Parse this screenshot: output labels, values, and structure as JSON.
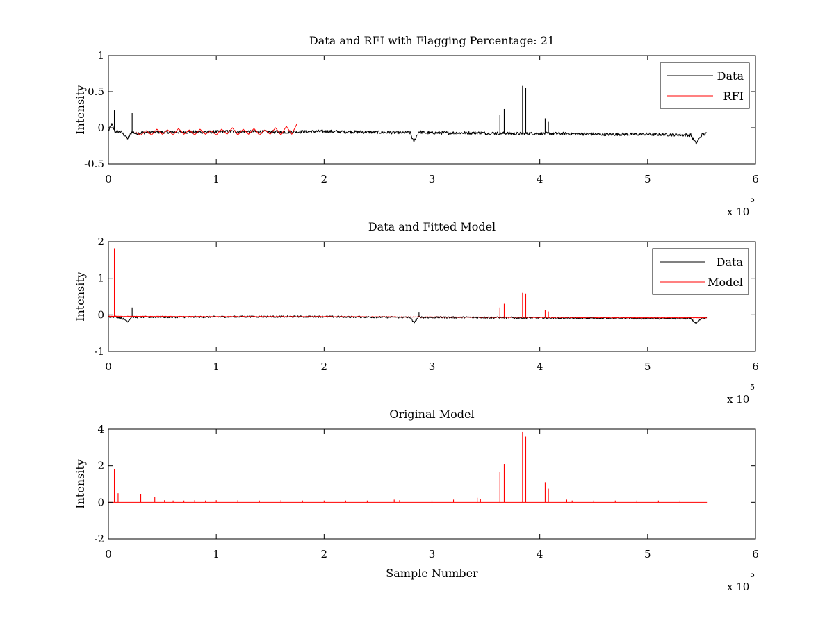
{
  "chart_data": [
    {
      "type": "line",
      "title": "Data and RFI with Flagging Percentage: 21",
      "xlabel": "",
      "ylabel": "Intensity",
      "xlim": [
        0,
        600000
      ],
      "ylim": [
        -0.5,
        1
      ],
      "xticks": [
        0,
        1,
        2,
        3,
        4,
        5,
        6
      ],
      "yticks": [
        "-0.5",
        "0",
        "0.5",
        "1"
      ],
      "x_exponent": "x 10",
      "x_exponent_power": "5",
      "legend_position": "top-right",
      "grid": false,
      "series": [
        {
          "name": "Data",
          "color": "#000000",
          "noise": 0.022,
          "x": [
            0,
            3000,
            6000,
            12000,
            18000,
            22000,
            25000,
            30000,
            40000,
            80000,
            120000,
            160000,
            200000,
            240000,
            280000,
            283000,
            288000,
            292000,
            300000,
            340000,
            380000,
            420000,
            460000,
            500000,
            540000,
            545000,
            550000,
            555000
          ],
          "y": [
            -0.05,
            0.05,
            -0.05,
            -0.06,
            -0.15,
            -0.05,
            -0.08,
            -0.07,
            -0.06,
            -0.06,
            -0.05,
            -0.06,
            -0.05,
            -0.06,
            -0.07,
            -0.2,
            -0.05,
            -0.07,
            -0.07,
            -0.07,
            -0.08,
            -0.08,
            -0.09,
            -0.09,
            -0.1,
            -0.22,
            -0.1,
            -0.08
          ],
          "spikes": [
            [
              5500,
              0.24
            ],
            [
              22000,
              0.21
            ],
            [
              363000,
              0.18
            ],
            [
              367000,
              0.26
            ],
            [
              384000,
              0.58
            ],
            [
              387000,
              0.55
            ],
            [
              405000,
              0.13
            ],
            [
              408000,
              0.09
            ]
          ]
        },
        {
          "name": "RFI",
          "color": "#ff0000",
          "x": [
            25000,
            30000,
            35000,
            40000,
            45000,
            50000,
            55000,
            60000,
            65000,
            70000,
            75000,
            80000,
            85000,
            90000,
            95000,
            100000,
            105000,
            110000,
            115000,
            120000,
            125000,
            130000,
            135000,
            140000,
            145000,
            150000,
            155000,
            160000,
            165000,
            170000,
            175000
          ],
          "y": [
            -0.06,
            -0.1,
            -0.04,
            -0.1,
            -0.02,
            -0.09,
            -0.03,
            -0.1,
            -0.01,
            -0.09,
            -0.03,
            -0.1,
            -0.02,
            -0.09,
            -0.04,
            -0.1,
            -0.02,
            -0.09,
            0.0,
            -0.1,
            -0.02,
            -0.09,
            -0.01,
            -0.1,
            -0.03,
            -0.09,
            0.0,
            -0.1,
            0.02,
            -0.09,
            0.06
          ],
          "spikes": []
        }
      ]
    },
    {
      "type": "line",
      "title": "Data and Fitted Model",
      "xlabel": "",
      "ylabel": "Intensity",
      "xlim": [
        0,
        600000
      ],
      "ylim": [
        -1,
        2
      ],
      "xticks": [
        0,
        1,
        2,
        3,
        4,
        5,
        6
      ],
      "yticks": [
        "-1",
        "0",
        "1",
        "2"
      ],
      "x_exponent": "x 10",
      "x_exponent_power": "5",
      "legend_position": "top-right",
      "grid": false,
      "series": [
        {
          "name": "Data",
          "color": "#000000",
          "noise": 0.025,
          "x": [
            0,
            6000,
            12000,
            18000,
            22000,
            25000,
            30000,
            80000,
            120000,
            160000,
            200000,
            240000,
            280000,
            283000,
            288000,
            292000,
            300000,
            340000,
            380000,
            420000,
            460000,
            500000,
            540000,
            545000,
            550000,
            555000
          ],
          "y": [
            -0.05,
            -0.05,
            -0.08,
            -0.18,
            -0.04,
            -0.07,
            -0.06,
            -0.06,
            -0.05,
            -0.05,
            -0.05,
            -0.06,
            -0.07,
            -0.22,
            -0.05,
            -0.07,
            -0.07,
            -0.07,
            -0.08,
            -0.09,
            -0.09,
            -0.1,
            -0.1,
            -0.25,
            -0.1,
            -0.08
          ],
          "spikes": [
            [
              22000,
              0.2
            ],
            [
              288000,
              0.08
            ]
          ]
        },
        {
          "name": "Model",
          "color": "#ff0000",
          "noise": 0.008,
          "x": [
            0,
            100000,
            200000,
            300000,
            400000,
            500000,
            555000
          ],
          "y": [
            -0.04,
            -0.05,
            -0.05,
            -0.06,
            -0.07,
            -0.08,
            -0.08
          ],
          "spikes": [
            [
              5500,
              1.82
            ],
            [
              363000,
              0.2
            ],
            [
              367000,
              0.3
            ],
            [
              384000,
              0.6
            ],
            [
              387000,
              0.58
            ],
            [
              405000,
              0.13
            ],
            [
              408000,
              0.09
            ]
          ]
        }
      ]
    },
    {
      "type": "line",
      "title": "Original Model",
      "xlabel": "Sample Number",
      "ylabel": "Intensity",
      "xlim": [
        0,
        600000
      ],
      "ylim": [
        -2,
        4
      ],
      "xticks": [
        0,
        1,
        2,
        3,
        4,
        5,
        6
      ],
      "yticks": [
        "-2",
        "0",
        "2",
        "4"
      ],
      "x_exponent": "x 10",
      "x_exponent_power": "5",
      "legend_position": "none",
      "grid": false,
      "series": [
        {
          "name": "",
          "color": "#ff0000",
          "noise": 0,
          "x": [
            0,
            555000
          ],
          "y": [
            0,
            0
          ],
          "spikes": [
            [
              5500,
              1.8
            ],
            [
              9000,
              0.5
            ],
            [
              30000,
              0.45
            ],
            [
              43000,
              0.3
            ],
            [
              52000,
              0.12
            ],
            [
              60000,
              0.1
            ],
            [
              70000,
              0.1
            ],
            [
              80000,
              0.12
            ],
            [
              90000,
              0.1
            ],
            [
              100000,
              0.12
            ],
            [
              120000,
              0.12
            ],
            [
              140000,
              0.1
            ],
            [
              160000,
              0.12
            ],
            [
              180000,
              0.1
            ],
            [
              200000,
              0.1
            ],
            [
              220000,
              0.1
            ],
            [
              240000,
              0.1
            ],
            [
              265000,
              0.15
            ],
            [
              270000,
              0.12
            ],
            [
              300000,
              0.1
            ],
            [
              320000,
              0.15
            ],
            [
              342000,
              0.25
            ],
            [
              345000,
              0.2
            ],
            [
              363000,
              1.65
            ],
            [
              367000,
              2.1
            ],
            [
              384000,
              3.85
            ],
            [
              387000,
              3.6
            ],
            [
              405000,
              1.1
            ],
            [
              408000,
              0.75
            ],
            [
              425000,
              0.15
            ],
            [
              430000,
              0.1
            ],
            [
              450000,
              0.1
            ],
            [
              470000,
              0.1
            ],
            [
              490000,
              0.1
            ],
            [
              510000,
              0.1
            ],
            [
              530000,
              0.1
            ]
          ]
        }
      ]
    }
  ]
}
